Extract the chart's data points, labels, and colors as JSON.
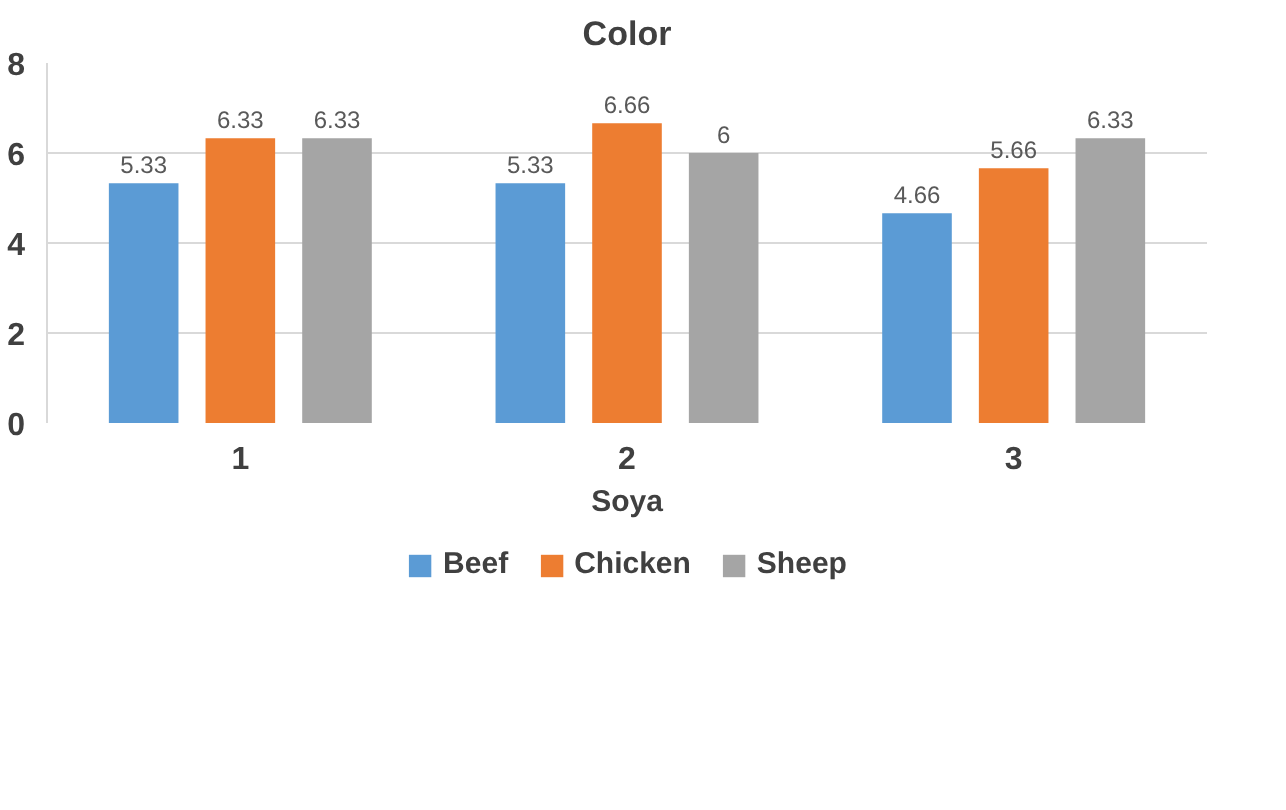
{
  "chart_data": {
    "type": "bar",
    "title": "Color",
    "xlabel": "Soya",
    "categories": [
      "1",
      "2",
      "3"
    ],
    "series": [
      {
        "name": "Beef",
        "color": "#5b9bd5",
        "values": [
          5.33,
          5.33,
          4.66
        ]
      },
      {
        "name": "Chicken",
        "color": "#ed7d31",
        "values": [
          6.33,
          6.66,
          5.66
        ]
      },
      {
        "name": "Sheep",
        "color": "#a5a5a5",
        "values": [
          6.33,
          6,
          6.33
        ]
      }
    ],
    "ylim": [
      0,
      8
    ],
    "yticks": [
      0,
      2,
      4,
      6,
      8
    ],
    "grid": "y",
    "legend": "bottom",
    "data_labels": true
  }
}
